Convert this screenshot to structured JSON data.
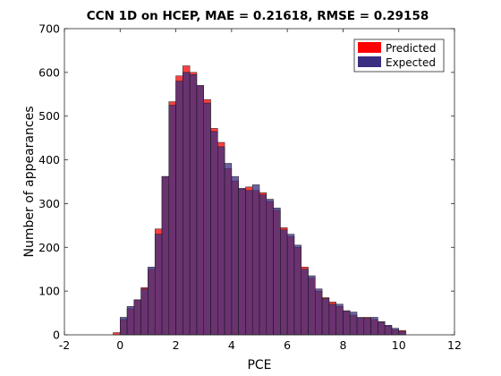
{
  "chart_data": {
    "type": "bar",
    "title": "CCN 1D on HCEP, MAE = 0.21618, RMSE = 0.29158",
    "xlabel": "PCE",
    "ylabel": "Number of appearances",
    "xlim": [
      -2,
      12
    ],
    "ylim": [
      0,
      700
    ],
    "xticks": [
      "-2",
      "0",
      "2",
      "4",
      "6",
      "8",
      "10",
      "12"
    ],
    "yticks": [
      "0",
      "100",
      "200",
      "300",
      "400",
      "500",
      "600",
      "700"
    ],
    "grid": false,
    "legend_position": "top-right",
    "bin_width": 0.25,
    "series": [
      {
        "name": "Predicted",
        "color": "#ff0000",
        "bins": [
          {
            "x": -0.25,
            "y": 5
          },
          {
            "x": 0.0,
            "y": 35
          },
          {
            "x": 0.25,
            "y": 60
          },
          {
            "x": 0.5,
            "y": 80
          },
          {
            "x": 0.75,
            "y": 108
          },
          {
            "x": 1.0,
            "y": 150
          },
          {
            "x": 1.25,
            "y": 242
          },
          {
            "x": 1.5,
            "y": 362
          },
          {
            "x": 1.75,
            "y": 533
          },
          {
            "x": 2.0,
            "y": 592
          },
          {
            "x": 2.25,
            "y": 615
          },
          {
            "x": 2.5,
            "y": 600
          },
          {
            "x": 2.75,
            "y": 570
          },
          {
            "x": 3.0,
            "y": 538
          },
          {
            "x": 3.25,
            "y": 472
          },
          {
            "x": 3.5,
            "y": 440
          },
          {
            "x": 3.75,
            "y": 380
          },
          {
            "x": 4.0,
            "y": 352
          },
          {
            "x": 4.25,
            "y": 333
          },
          {
            "x": 4.5,
            "y": 338
          },
          {
            "x": 4.75,
            "y": 330
          },
          {
            "x": 5.0,
            "y": 325
          },
          {
            "x": 5.25,
            "y": 305
          },
          {
            "x": 5.5,
            "y": 285
          },
          {
            "x": 5.75,
            "y": 245
          },
          {
            "x": 6.0,
            "y": 225
          },
          {
            "x": 6.25,
            "y": 200
          },
          {
            "x": 6.5,
            "y": 155
          },
          {
            "x": 6.75,
            "y": 130
          },
          {
            "x": 7.0,
            "y": 100
          },
          {
            "x": 7.25,
            "y": 85
          },
          {
            "x": 7.5,
            "y": 75
          },
          {
            "x": 7.75,
            "y": 65
          },
          {
            "x": 8.0,
            "y": 55
          },
          {
            "x": 8.25,
            "y": 45
          },
          {
            "x": 8.5,
            "y": 38
          },
          {
            "x": 8.75,
            "y": 40
          },
          {
            "x": 9.0,
            "y": 35
          },
          {
            "x": 9.25,
            "y": 30
          },
          {
            "x": 9.5,
            "y": 20
          },
          {
            "x": 9.75,
            "y": 12
          },
          {
            "x": 10.0,
            "y": 10
          }
        ]
      },
      {
        "name": "Expected",
        "color": "#3a2e80",
        "bins": [
          {
            "x": -0.25,
            "y": 0
          },
          {
            "x": 0.0,
            "y": 40
          },
          {
            "x": 0.25,
            "y": 65
          },
          {
            "x": 0.5,
            "y": 80
          },
          {
            "x": 0.75,
            "y": 105
          },
          {
            "x": 1.0,
            "y": 155
          },
          {
            "x": 1.25,
            "y": 230
          },
          {
            "x": 1.5,
            "y": 362
          },
          {
            "x": 1.75,
            "y": 525
          },
          {
            "x": 2.0,
            "y": 580
          },
          {
            "x": 2.25,
            "y": 600
          },
          {
            "x": 2.5,
            "y": 595
          },
          {
            "x": 2.75,
            "y": 570
          },
          {
            "x": 3.0,
            "y": 530
          },
          {
            "x": 3.25,
            "y": 465
          },
          {
            "x": 3.5,
            "y": 430
          },
          {
            "x": 3.75,
            "y": 392
          },
          {
            "x": 4.0,
            "y": 362
          },
          {
            "x": 4.25,
            "y": 335
          },
          {
            "x": 4.5,
            "y": 330
          },
          {
            "x": 4.75,
            "y": 343
          },
          {
            "x": 5.0,
            "y": 320
          },
          {
            "x": 5.25,
            "y": 310
          },
          {
            "x": 5.5,
            "y": 290
          },
          {
            "x": 5.75,
            "y": 240
          },
          {
            "x": 6.0,
            "y": 230
          },
          {
            "x": 6.25,
            "y": 205
          },
          {
            "x": 6.5,
            "y": 150
          },
          {
            "x": 6.75,
            "y": 135
          },
          {
            "x": 7.0,
            "y": 105
          },
          {
            "x": 7.25,
            "y": 83
          },
          {
            "x": 7.5,
            "y": 70
          },
          {
            "x": 7.75,
            "y": 70
          },
          {
            "x": 8.0,
            "y": 55
          },
          {
            "x": 8.25,
            "y": 52
          },
          {
            "x": 8.5,
            "y": 40
          },
          {
            "x": 8.75,
            "y": 38
          },
          {
            "x": 9.0,
            "y": 40
          },
          {
            "x": 9.25,
            "y": 30
          },
          {
            "x": 9.5,
            "y": 22
          },
          {
            "x": 9.75,
            "y": 15
          },
          {
            "x": 10.0,
            "y": 8
          }
        ]
      }
    ]
  }
}
